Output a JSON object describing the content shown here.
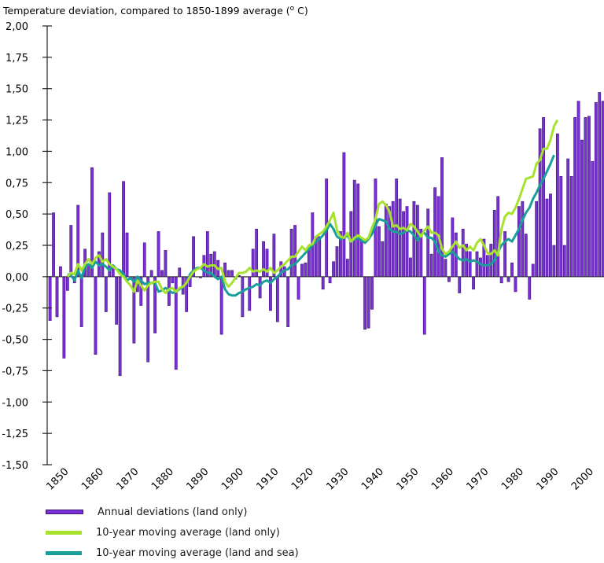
{
  "chart_data": {
    "type": "bar",
    "title": "Temperature deviation, compared to 1850-1899 average (°C)",
    "title_parts": {
      "prefix": "Temperature deviation, compared to 1850-1899 average (",
      "superscript": "o",
      "suffix": " C)"
    },
    "xlabel": "",
    "ylabel": "",
    "ylim": [
      -1.5,
      2.0
    ],
    "xlim": [
      1850,
      2005
    ],
    "y_ticks": [
      2.0,
      1.75,
      1.5,
      1.25,
      1.0,
      0.75,
      0.5,
      0.25,
      0.0,
      -0.25,
      -0.5,
      -0.75,
      -1.0,
      -1.25,
      -1.5
    ],
    "y_tick_labels": [
      "2,00",
      "1,75",
      "1,50",
      "1,25",
      "1,00",
      "0,75",
      "0,50",
      "0,25",
      "0,00",
      "-0,25",
      "-0,50",
      "-0,75",
      "-1,00",
      "-1,25",
      "-1,50"
    ],
    "x_ticks": [
      1850,
      1860,
      1870,
      1880,
      1890,
      1900,
      1910,
      1920,
      1930,
      1940,
      1950,
      1960,
      1970,
      1980,
      1990,
      2000
    ],
    "x_tick_labels": [
      "1850",
      "1860",
      "1870",
      "1880",
      "1890",
      "1900",
      "1910",
      "1920",
      "1930",
      "1940",
      "1950",
      "1960",
      "1970",
      "1980",
      "1990",
      "2000"
    ],
    "grid": false,
    "legend_position": "bottom-left",
    "years_start": 1850,
    "series": [
      {
        "name": "Annual deviations (land only)",
        "kind": "bar",
        "color": "#7b2fd9",
        "values": [
          -0.35,
          0.51,
          -0.32,
          0.08,
          -0.65,
          -0.11,
          0.41,
          -0.05,
          0.57,
          -0.4,
          0.22,
          0.09,
          0.87,
          -0.62,
          0.2,
          0.35,
          -0.28,
          0.67,
          0.08,
          -0.38,
          -0.79,
          0.76,
          0.35,
          -0.02,
          -0.53,
          -0.12,
          -0.23,
          0.27,
          -0.68,
          0.05,
          -0.45,
          0.36,
          0.05,
          0.21,
          -0.23,
          -0.05,
          -0.74,
          0.07,
          -0.14,
          -0.28,
          -0.08,
          0.32,
          0.0,
          -0.01,
          0.17,
          0.36,
          0.18,
          0.2,
          0.13,
          -0.46,
          0.11,
          0.05,
          0.05,
          -0.02,
          0.01,
          -0.32,
          0.0,
          -0.27,
          0.22,
          0.38,
          -0.17,
          0.28,
          0.22,
          -0.27,
          0.34,
          -0.36,
          0.12,
          0.08,
          -0.4,
          0.38,
          0.41,
          -0.18,
          0.1,
          0.11,
          0.22,
          0.51,
          0.32,
          0.32,
          -0.1,
          0.78,
          -0.05,
          0.12,
          0.24,
          0.36,
          0.99,
          0.14,
          0.52,
          0.77,
          0.74,
          0.3,
          -0.42,
          -0.41,
          -0.26,
          0.78,
          0.4,
          0.28,
          0.58,
          0.56,
          0.6,
          0.78,
          0.62,
          0.52,
          0.56,
          0.15,
          0.6,
          0.57,
          0.38,
          -0.46,
          0.54,
          0.18,
          0.71,
          0.64,
          0.95,
          0.14,
          -0.04,
          0.47,
          0.35,
          -0.13,
          0.38,
          0.26,
          0.2,
          -0.1,
          0.2,
          0.15,
          0.3,
          0.17,
          0.26,
          0.53,
          0.64,
          -0.05,
          0.36,
          -0.04,
          0.11,
          -0.12,
          0.56,
          0.6,
          0.34,
          -0.18,
          0.1,
          0.6,
          1.18,
          1.27,
          0.62,
          0.66,
          0.25,
          1.14,
          0.8,
          0.25,
          0.94,
          0.8,
          1.27,
          1.4,
          1.09,
          1.27,
          1.28,
          0.92,
          1.39,
          1.47,
          1.4,
          1.4
        ]
      },
      {
        "name": "10-year moving average (land only)",
        "kind": "line",
        "color": "#a6e22e",
        "start_year": 1855,
        "values": [
          0.0,
          0.03,
          0.02,
          0.1,
          0.05,
          0.1,
          0.14,
          0.1,
          0.15,
          0.17,
          0.12,
          0.14,
          0.1,
          0.08,
          0.06,
          0.02,
          0.0,
          -0.04,
          -0.07,
          -0.12,
          -0.03,
          -0.07,
          -0.11,
          -0.07,
          -0.05,
          -0.04,
          -0.04,
          -0.1,
          -0.13,
          -0.1,
          -0.09,
          -0.12,
          -0.09,
          -0.08,
          -0.05,
          0.0,
          0.04,
          0.06,
          0.07,
          0.1,
          0.08,
          0.09,
          0.09,
          0.06,
          0.07,
          -0.04,
          -0.08,
          -0.05,
          -0.01,
          0.03,
          0.03,
          0.04,
          0.07,
          0.04,
          0.05,
          0.04,
          0.06,
          0.04,
          0.07,
          0.03,
          0.05,
          0.08,
          0.1,
          0.13,
          0.16,
          0.16,
          0.2,
          0.24,
          0.21,
          0.25,
          0.26,
          0.32,
          0.34,
          0.36,
          0.4,
          0.45,
          0.51,
          0.37,
          0.32,
          0.31,
          0.35,
          0.28,
          0.31,
          0.33,
          0.31,
          0.29,
          0.31,
          0.39,
          0.46,
          0.58,
          0.6,
          0.57,
          0.52,
          0.4,
          0.41,
          0.38,
          0.39,
          0.37,
          0.42,
          0.4,
          0.36,
          0.32,
          0.37,
          0.4,
          0.35,
          0.35,
          0.33,
          0.22,
          0.18,
          0.2,
          0.24,
          0.28,
          0.23,
          0.25,
          0.21,
          0.24,
          0.21,
          0.27,
          0.3,
          0.25,
          0.19,
          0.18,
          0.21,
          0.17,
          0.38,
          0.48,
          0.51,
          0.5,
          0.55,
          0.62,
          0.7,
          0.78,
          0.79,
          0.8,
          0.9,
          0.93,
          1.02,
          1.02,
          1.09,
          1.2,
          1.25
        ]
      },
      {
        "name": "10-year moving average (land and sea)",
        "kind": "line",
        "color": "#1a9e9a",
        "start_year": 1855,
        "values": [
          0.02,
          0.01,
          -0.03,
          0.05,
          -0.01,
          0.08,
          0.1,
          0.07,
          0.12,
          0.09,
          0.1,
          0.08,
          0.05,
          0.09,
          0.06,
          0.05,
          0.02,
          -0.03,
          -0.01,
          -0.04,
          0.0,
          -0.03,
          -0.06,
          -0.05,
          -0.05,
          -0.05,
          -0.12,
          -0.11,
          -0.09,
          -0.11,
          -0.13,
          -0.12,
          -0.1,
          -0.08,
          -0.05,
          0.02,
          0.05,
          0.07,
          0.07,
          0.05,
          0.03,
          0.03,
          0.0,
          -0.02,
          0.0,
          -0.1,
          -0.14,
          -0.15,
          -0.15,
          -0.13,
          -0.12,
          -0.1,
          -0.09,
          -0.08,
          -0.06,
          -0.07,
          -0.04,
          -0.03,
          -0.05,
          -0.02,
          0.0,
          0.03,
          0.05,
          0.06,
          0.09,
          0.1,
          0.13,
          0.16,
          0.19,
          0.22,
          0.25,
          0.28,
          0.3,
          0.33,
          0.37,
          0.42,
          0.38,
          0.32,
          0.3,
          0.31,
          0.33,
          0.28,
          0.3,
          0.31,
          0.29,
          0.27,
          0.3,
          0.34,
          0.41,
          0.46,
          0.45,
          0.44,
          0.38,
          0.36,
          0.36,
          0.34,
          0.35,
          0.37,
          0.36,
          0.33,
          0.29,
          0.34,
          0.35,
          0.31,
          0.31,
          0.28,
          0.2,
          0.17,
          0.16,
          0.18,
          0.2,
          0.17,
          0.14,
          0.13,
          0.14,
          0.12,
          0.13,
          0.12,
          0.1,
          0.09,
          0.09,
          0.1,
          0.13,
          0.2,
          0.25,
          0.28,
          0.3,
          0.28,
          0.33,
          0.38,
          0.45,
          0.51,
          0.55,
          0.62,
          0.67,
          0.73,
          0.78,
          0.84,
          0.9,
          0.97
        ]
      }
    ]
  },
  "legend": {
    "items": [
      {
        "label": "Annual deviations (land only)",
        "color": "#7b2fd9"
      },
      {
        "label": "10-year moving average (land only)",
        "color": "#a6e22e"
      },
      {
        "label": "10-year moving average (land and sea)",
        "color": "#1a9e9a"
      }
    ]
  }
}
